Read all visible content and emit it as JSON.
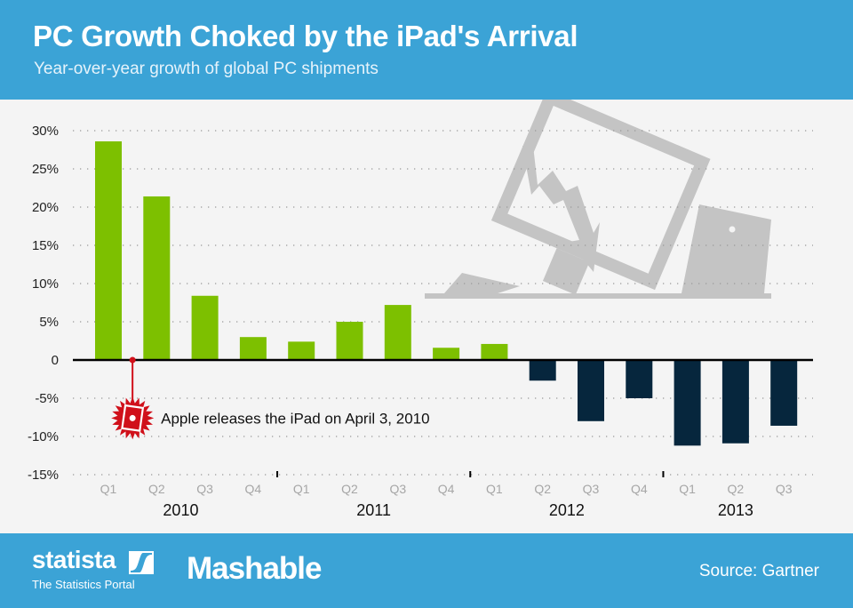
{
  "header": {
    "title": "PC Growth Choked by the iPad's Arrival",
    "subtitle": "Year-over-year growth of global PC shipments"
  },
  "footer": {
    "brand1": "statista",
    "brand1_tagline": "The Statistics Portal",
    "brand2": "Mashable",
    "source": "Source: Gartner"
  },
  "colors": {
    "header_bg": "#3ba3d6",
    "positive": "#7dc000",
    "negative": "#06263d",
    "annotation": "#d0101a",
    "illustration": "#c4c4c4"
  },
  "annotation": {
    "text": "Apple releases the iPad on April 3, 2010",
    "icon": "ipad-starburst-icon"
  },
  "chart_data": {
    "type": "bar",
    "title": "PC Growth Choked by the iPad's Arrival",
    "subtitle": "Year-over-year growth of global PC shipments",
    "xlabel": "",
    "ylabel": "",
    "ylim": [
      -15,
      30
    ],
    "yticks": [
      30,
      25,
      20,
      15,
      10,
      5,
      0,
      -5,
      -10,
      -15
    ],
    "ytick_labels": [
      "30%",
      "25%",
      "20%",
      "15%",
      "10%",
      "5%",
      "0",
      "-5%",
      "-10%",
      "-15%"
    ],
    "grid": true,
    "categories": [
      "Q1",
      "Q2",
      "Q3",
      "Q4",
      "Q1",
      "Q2",
      "Q3",
      "Q4",
      "Q1",
      "Q2",
      "Q3",
      "Q4",
      "Q1",
      "Q2",
      "Q3"
    ],
    "years": [
      {
        "label": "2010",
        "quarters": 4
      },
      {
        "label": "2011",
        "quarters": 4
      },
      {
        "label": "2012",
        "quarters": 4
      },
      {
        "label": "2013",
        "quarters": 3
      }
    ],
    "values": [
      28.6,
      21.4,
      8.4,
      3.0,
      2.4,
      5.0,
      7.2,
      1.6,
      2.1,
      -2.7,
      -8.0,
      -5.0,
      -11.2,
      -10.9,
      -8.6
    ],
    "annotation_position": {
      "between_categories": [
        0,
        1
      ],
      "label": "Apple releases the iPad on April 3, 2010"
    },
    "legend": "none"
  }
}
